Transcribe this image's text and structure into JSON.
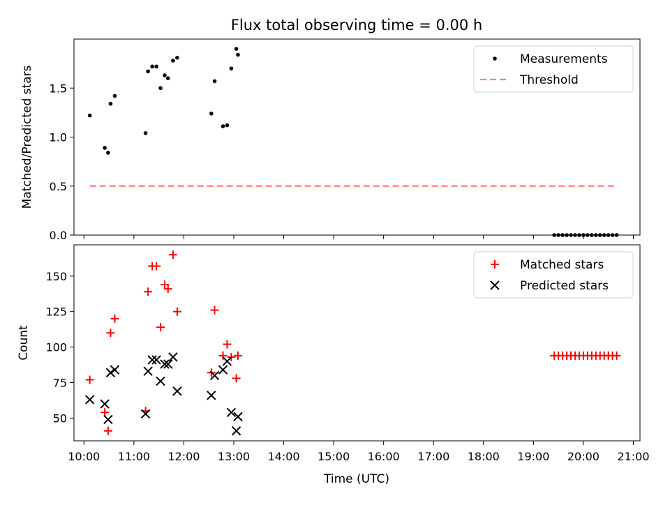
{
  "figure": {
    "title": "Flux total observing time = 0.00 h",
    "xlabel": "Time (UTC)"
  },
  "chart_data": [
    {
      "type": "scatter",
      "ylabel": "Matched/Predicted stars",
      "ylim": [
        0,
        2.0
      ],
      "yticks": [
        0.0,
        0.5,
        1.0,
        1.5
      ],
      "ytick_labels": [
        "0.0",
        "0.5",
        "1.0",
        "1.5"
      ],
      "xlim": [
        "09:48",
        "21:08"
      ],
      "legend_position": "top-right",
      "series": [
        {
          "name": "Measurements",
          "kind": "dot",
          "color": "#000000",
          "points": [
            [
              "10:07",
              1.22
            ],
            [
              "10:25",
              0.89
            ],
            [
              "10:29",
              0.84
            ],
            [
              "10:32",
              1.34
            ],
            [
              "10:37",
              1.42
            ],
            [
              "11:14",
              1.04
            ],
            [
              "11:17",
              1.67
            ],
            [
              "11:22",
              1.72
            ],
            [
              "11:27",
              1.72
            ],
            [
              "11:32",
              1.5
            ],
            [
              "11:37",
              1.63
            ],
            [
              "11:41",
              1.6
            ],
            [
              "11:47",
              1.78
            ],
            [
              "11:52",
              1.81
            ],
            [
              "12:33",
              1.24
            ],
            [
              "12:37",
              1.57
            ],
            [
              "12:47",
              1.11
            ],
            [
              "12:52",
              1.12
            ],
            [
              "12:57",
              1.7
            ],
            [
              "13:03",
              1.9
            ],
            [
              "13:05",
              1.84
            ],
            [
              "19:25",
              0.0
            ],
            [
              "19:30",
              0.0
            ],
            [
              "19:35",
              0.0
            ],
            [
              "19:40",
              0.0
            ],
            [
              "19:45",
              0.0
            ],
            [
              "19:50",
              0.0
            ],
            [
              "19:55",
              0.0
            ],
            [
              "20:00",
              0.0
            ],
            [
              "20:05",
              0.0
            ],
            [
              "20:10",
              0.0
            ],
            [
              "20:15",
              0.0
            ],
            [
              "20:20",
              0.0
            ],
            [
              "20:25",
              0.0
            ],
            [
              "20:30",
              0.0
            ],
            [
              "20:35",
              0.0
            ],
            [
              "20:40",
              0.0
            ]
          ]
        },
        {
          "name": "Threshold",
          "kind": "dashed-line",
          "color": "#ff7f7f",
          "points": [
            [
              "10:07",
              0.5
            ],
            [
              "20:40",
              0.5
            ]
          ]
        }
      ]
    },
    {
      "type": "scatter",
      "ylabel": "Count",
      "ylim": [
        34,
        172
      ],
      "yticks": [
        50,
        75,
        100,
        125,
        150
      ],
      "ytick_labels": [
        "50",
        "75",
        "100",
        "125",
        "150"
      ],
      "xlim": [
        "09:48",
        "21:08"
      ],
      "xticks": [
        "10:00",
        "11:00",
        "12:00",
        "13:00",
        "14:00",
        "15:00",
        "16:00",
        "17:00",
        "18:00",
        "19:00",
        "20:00",
        "21:00"
      ],
      "legend_position": "top-right",
      "series": [
        {
          "name": "Matched stars",
          "kind": "plus",
          "color": "#ff0000",
          "points": [
            [
              "10:07",
              77
            ],
            [
              "10:25",
              54
            ],
            [
              "10:29",
              41
            ],
            [
              "10:32",
              110
            ],
            [
              "10:37",
              120
            ],
            [
              "11:14",
              55
            ],
            [
              "11:17",
              139
            ],
            [
              "11:22",
              157
            ],
            [
              "11:27",
              157
            ],
            [
              "11:32",
              114
            ],
            [
              "11:37",
              144
            ],
            [
              "11:41",
              141
            ],
            [
              "11:47",
              165
            ],
            [
              "11:52",
              125
            ],
            [
              "12:33",
              82
            ],
            [
              "12:37",
              126
            ],
            [
              "12:47",
              94
            ],
            [
              "12:52",
              102
            ],
            [
              "12:57",
              93
            ],
            [
              "13:03",
              78
            ],
            [
              "13:05",
              94
            ],
            [
              "19:25",
              94
            ],
            [
              "19:30",
              94
            ],
            [
              "19:35",
              94
            ],
            [
              "19:40",
              94
            ],
            [
              "19:45",
              94
            ],
            [
              "19:50",
              94
            ],
            [
              "19:55",
              94
            ],
            [
              "20:00",
              94
            ],
            [
              "20:05",
              94
            ],
            [
              "20:10",
              94
            ],
            [
              "20:15",
              94
            ],
            [
              "20:20",
              94
            ],
            [
              "20:25",
              94
            ],
            [
              "20:30",
              94
            ],
            [
              "20:35",
              94
            ],
            [
              "20:40",
              94
            ]
          ]
        },
        {
          "name": "Predicted stars",
          "kind": "x",
          "color": "#000000",
          "points": [
            [
              "10:07",
              63
            ],
            [
              "10:25",
              60
            ],
            [
              "10:29",
              49
            ],
            [
              "10:32",
              82
            ],
            [
              "10:37",
              84
            ],
            [
              "11:14",
              53
            ],
            [
              "11:17",
              83
            ],
            [
              "11:22",
              91
            ],
            [
              "11:27",
              91
            ],
            [
              "11:32",
              76
            ],
            [
              "11:37",
              88
            ],
            [
              "11:41",
              88
            ],
            [
              "11:47",
              93
            ],
            [
              "11:52",
              69
            ],
            [
              "12:33",
              66
            ],
            [
              "12:37",
              80
            ],
            [
              "12:47",
              84
            ],
            [
              "12:52",
              90
            ],
            [
              "12:57",
              54
            ],
            [
              "13:03",
              41
            ],
            [
              "13:05",
              51
            ]
          ]
        }
      ]
    }
  ]
}
